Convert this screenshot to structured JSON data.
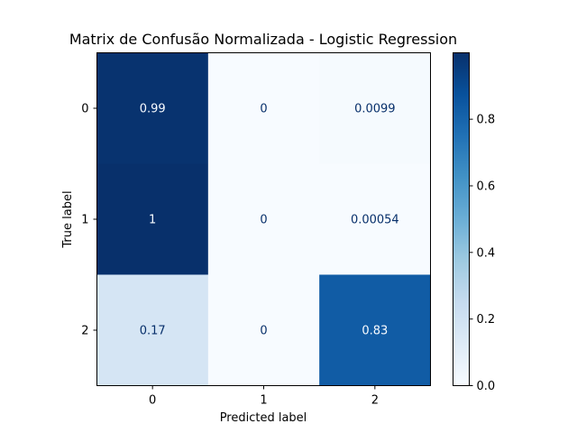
{
  "chart_data": {
    "type": "heatmap",
    "title": "Matrix de Confusão Normalizada - Logistic Regression",
    "xlabel": "Predicted label",
    "ylabel": "True label",
    "x_categories": [
      "0",
      "1",
      "2"
    ],
    "y_categories": [
      "0",
      "1",
      "2"
    ],
    "values": [
      [
        0.99,
        0,
        0.0099
      ],
      [
        1,
        0,
        0.00054
      ],
      [
        0.17,
        0,
        0.83
      ]
    ],
    "cell_labels": [
      [
        "0.99",
        "0",
        "0.0099"
      ],
      [
        "1",
        "0",
        "0.00054"
      ],
      [
        "0.17",
        "0",
        "0.83"
      ]
    ],
    "colormap": "Blues",
    "colorbar": {
      "range": [
        0,
        0.9995
      ],
      "ticks": [
        0.0,
        0.2,
        0.4,
        0.6,
        0.8
      ],
      "tick_labels": [
        "0.0",
        "0.2",
        "0.4",
        "0.6",
        "0.8"
      ]
    },
    "grid": false
  }
}
